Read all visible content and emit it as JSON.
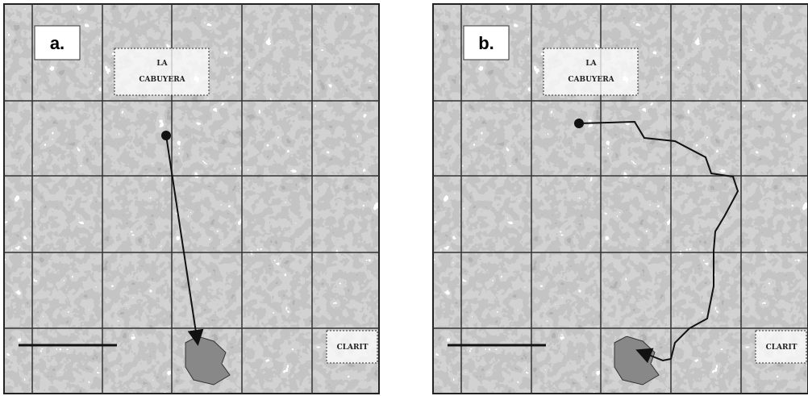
{
  "panels": [
    {
      "label": "a.",
      "place_names": [
        "LA",
        "CABUYERA",
        "CLARIT"
      ]
    },
    {
      "label": "b.",
      "place_names": [
        "LA",
        "CABUYERA",
        "CLARIT"
      ]
    }
  ]
}
